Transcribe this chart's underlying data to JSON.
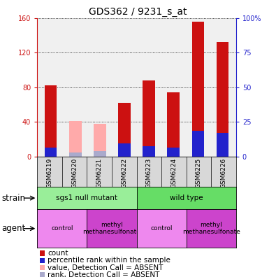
{
  "title": "GDS362 / 9231_s_at",
  "samples": [
    "GSM6219",
    "GSM6220",
    "GSM6221",
    "GSM6222",
    "GSM6223",
    "GSM6224",
    "GSM6225",
    "GSM6226"
  ],
  "bar_values": [
    82,
    41,
    38,
    62,
    88,
    74,
    156,
    132
  ],
  "bar_absent": [
    false,
    true,
    true,
    false,
    false,
    false,
    false,
    false
  ],
  "percentile_values": [
    10,
    5,
    6,
    15,
    12,
    10,
    30,
    27
  ],
  "percentile_absent": [
    false,
    true,
    true,
    false,
    false,
    false,
    false,
    false
  ],
  "ylim_left": [
    0,
    160
  ],
  "ylim_right": [
    0,
    100
  ],
  "yticks_left": [
    0,
    40,
    80,
    120,
    160
  ],
  "yticks_right": [
    0,
    25,
    50,
    75,
    100
  ],
  "ytick_labels_right": [
    "0",
    "25",
    "50",
    "75",
    "100%"
  ],
  "color_count": "#cc1111",
  "color_count_absent": "#ffaaaa",
  "color_rank": "#2222cc",
  "color_rank_absent": "#aaaacc",
  "strain_groups": [
    {
      "label": "sgs1 null mutant",
      "start": 0,
      "end": 4,
      "color": "#99ee99"
    },
    {
      "label": "wild type",
      "start": 4,
      "end": 8,
      "color": "#66dd66"
    }
  ],
  "agent_groups": [
    {
      "label": "control",
      "start": 0,
      "end": 2,
      "color": "#ee88ee"
    },
    {
      "label": "methyl\nmethanesulfonate",
      "start": 2,
      "end": 4,
      "color": "#cc44cc"
    },
    {
      "label": "control",
      "start": 4,
      "end": 6,
      "color": "#ee88ee"
    },
    {
      "label": "methyl\nmethanesulfonate",
      "start": 6,
      "end": 8,
      "color": "#cc44cc"
    }
  ],
  "legend_items": [
    {
      "label": "count",
      "color": "#cc1111"
    },
    {
      "label": "percentile rank within the sample",
      "color": "#2222cc"
    },
    {
      "label": "value, Detection Call = ABSENT",
      "color": "#ffaaaa"
    },
    {
      "label": "rank, Detection Call = ABSENT",
      "color": "#aaaacc"
    }
  ],
  "bar_width": 0.5,
  "chart_bg": "#f0f0f0",
  "title_fontsize": 10,
  "tick_fontsize": 7,
  "ann_fontsize": 7.5,
  "legend_fontsize": 7.5,
  "sample_box_color": "#d8d8d8"
}
